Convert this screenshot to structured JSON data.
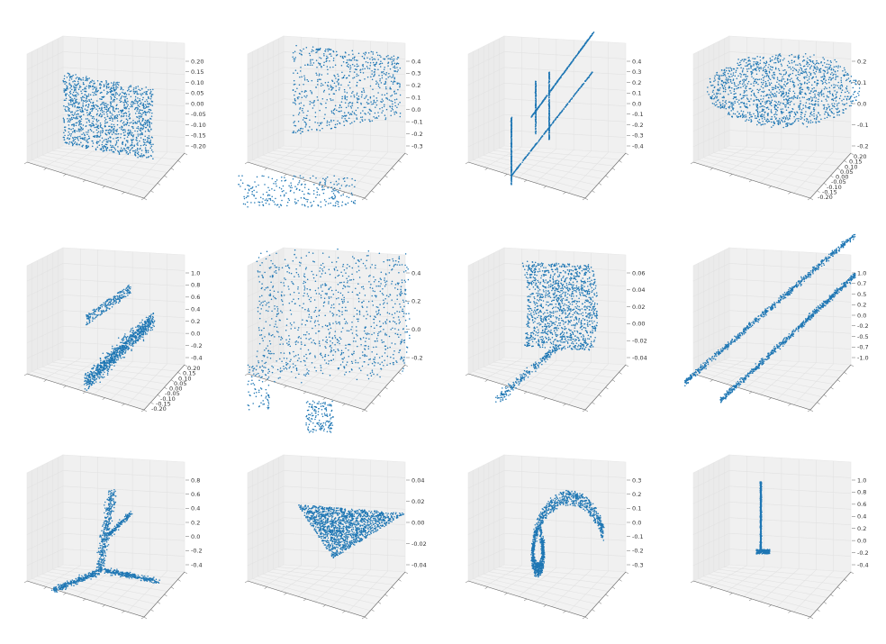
{
  "chart_data": [
    {
      "type": "scatter",
      "shape": "planar-rectangle-sheet",
      "zticks": [
        "0.20",
        "0.15",
        "0.10",
        "0.05",
        "0.00",
        "-0.05",
        "-0.10",
        "-0.15",
        "-0.20"
      ],
      "yticks": [],
      "grid": true,
      "color": "#1f77b4"
    },
    {
      "type": "scatter",
      "shape": "sparse-surface-with-base",
      "zticks": [
        "0.4",
        "0.3",
        "0.2",
        "0.1",
        "0.0",
        "-0.1",
        "-0.2",
        "-0.3"
      ],
      "yticks": [],
      "grid": true,
      "color": "#1f77b4"
    },
    {
      "type": "scatter",
      "shape": "thin-crossing-lines",
      "zticks": [
        "0.4",
        "0.3",
        "0.2",
        "0.1",
        "0.0",
        "-0.1",
        "-0.2",
        "-0.3",
        "-0.4"
      ],
      "yticks": [],
      "grid": true,
      "color": "#1f77b4"
    },
    {
      "type": "scatter",
      "shape": "flat-ellipsoid-cloud",
      "zticks": [
        "0.2",
        "0.1",
        "0.0",
        "-0.1",
        "-0.2"
      ],
      "yticks": [
        "0.20",
        "0.15",
        "0.10",
        "0.05",
        "0.00",
        "-0.05",
        "-0.10",
        "-0.15",
        "-0.20"
      ],
      "grid": true,
      "color": "#1f77b4"
    },
    {
      "type": "scatter",
      "shape": "two-clusters",
      "zticks": [
        "1.0",
        "0.8",
        "0.6",
        "0.4",
        "0.2",
        "0.0",
        "-0.2",
        "-0.4"
      ],
      "yticks": [
        "0.20",
        "0.15",
        "0.10",
        "0.05",
        "0.00",
        "-0.05",
        "-0.10",
        "-0.15",
        "-0.20"
      ],
      "grid": true,
      "color": "#1f77b4"
    },
    {
      "type": "scatter",
      "shape": "sparse-box-cloud",
      "zticks": [
        "0.4",
        "0.2",
        "0.0",
        "-0.2"
      ],
      "yticks": [],
      "grid": true,
      "color": "#1f77b4"
    },
    {
      "type": "scatter",
      "shape": "curved-sheet-with-tail",
      "zticks": [
        "0.06",
        "0.04",
        "0.02",
        "0.00",
        "-0.02",
        "-0.04"
      ],
      "yticks": [],
      "grid": true,
      "color": "#1f77b4"
    },
    {
      "type": "scatter",
      "shape": "two-parallel-bands",
      "zticks": [
        "1.0",
        "0.7",
        "0.5",
        "0.2",
        "0.0",
        "-0.2",
        "-0.5",
        "-0.7",
        "-1.0"
      ],
      "yticks": [],
      "grid": true,
      "color": "#1f77b4"
    },
    {
      "type": "scatter",
      "shape": "tripod",
      "zticks": [
        "0.8",
        "0.6",
        "0.4",
        "0.2",
        "0.0",
        "-0.2",
        "-0.4"
      ],
      "yticks": [],
      "grid": true,
      "color": "#1f77b4"
    },
    {
      "type": "scatter",
      "shape": "triangular-sheet",
      "zticks": [
        "0.04",
        "0.02",
        "0.00",
        "-0.02",
        "-0.04"
      ],
      "yticks": [],
      "grid": true,
      "color": "#1f77b4"
    },
    {
      "type": "scatter",
      "shape": "curled-ribbon",
      "zticks": [
        "0.3",
        "0.2",
        "0.1",
        "0.0",
        "-0.1",
        "-0.2",
        "-0.3"
      ],
      "yticks": [],
      "grid": true,
      "color": "#1f77b4"
    },
    {
      "type": "scatter",
      "shape": "vertical-stick",
      "zticks": [
        "1.0",
        "0.8",
        "0.6",
        "0.4",
        "0.2",
        "0.0",
        "-0.2",
        "-0.4"
      ],
      "yticks": [],
      "grid": true,
      "color": "#1f77b4"
    }
  ]
}
